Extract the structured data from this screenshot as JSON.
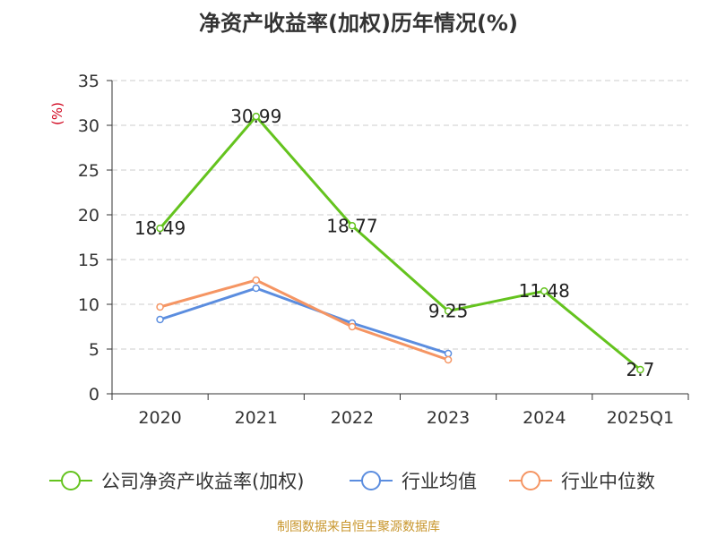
{
  "page": {
    "title": "净资产收益率(加权)历年情况(%)",
    "source": "制图数据来自恒生聚源数据库"
  },
  "chart_data": {
    "type": "line",
    "title": "净资产收益率(加权)历年情况(%)",
    "xlabel": "",
    "ylabel": "(%)",
    "categories": [
      "2020",
      "2021",
      "2022",
      "2023",
      "2024",
      "2025Q1"
    ],
    "ylim": [
      0,
      35
    ],
    "yticks": [
      0,
      5,
      10,
      15,
      20,
      25,
      30,
      35
    ],
    "grid": true,
    "legend_position": "bottom",
    "series": [
      {
        "name": "公司净资产收益率(加权)",
        "color": "#64c31e",
        "values": [
          18.49,
          30.99,
          18.77,
          9.25,
          11.48,
          2.7
        ],
        "labels": [
          "18.49",
          "30.99",
          "18.77",
          "9.25",
          "11.48",
          "2.7"
        ]
      },
      {
        "name": "行业均值",
        "color": "#5b8ddf",
        "values": [
          8.3,
          11.8,
          7.9,
          4.5,
          null,
          null
        ]
      },
      {
        "name": "行业中位数",
        "color": "#f59563",
        "values": [
          9.7,
          12.7,
          7.5,
          3.8,
          null,
          null
        ]
      }
    ]
  }
}
